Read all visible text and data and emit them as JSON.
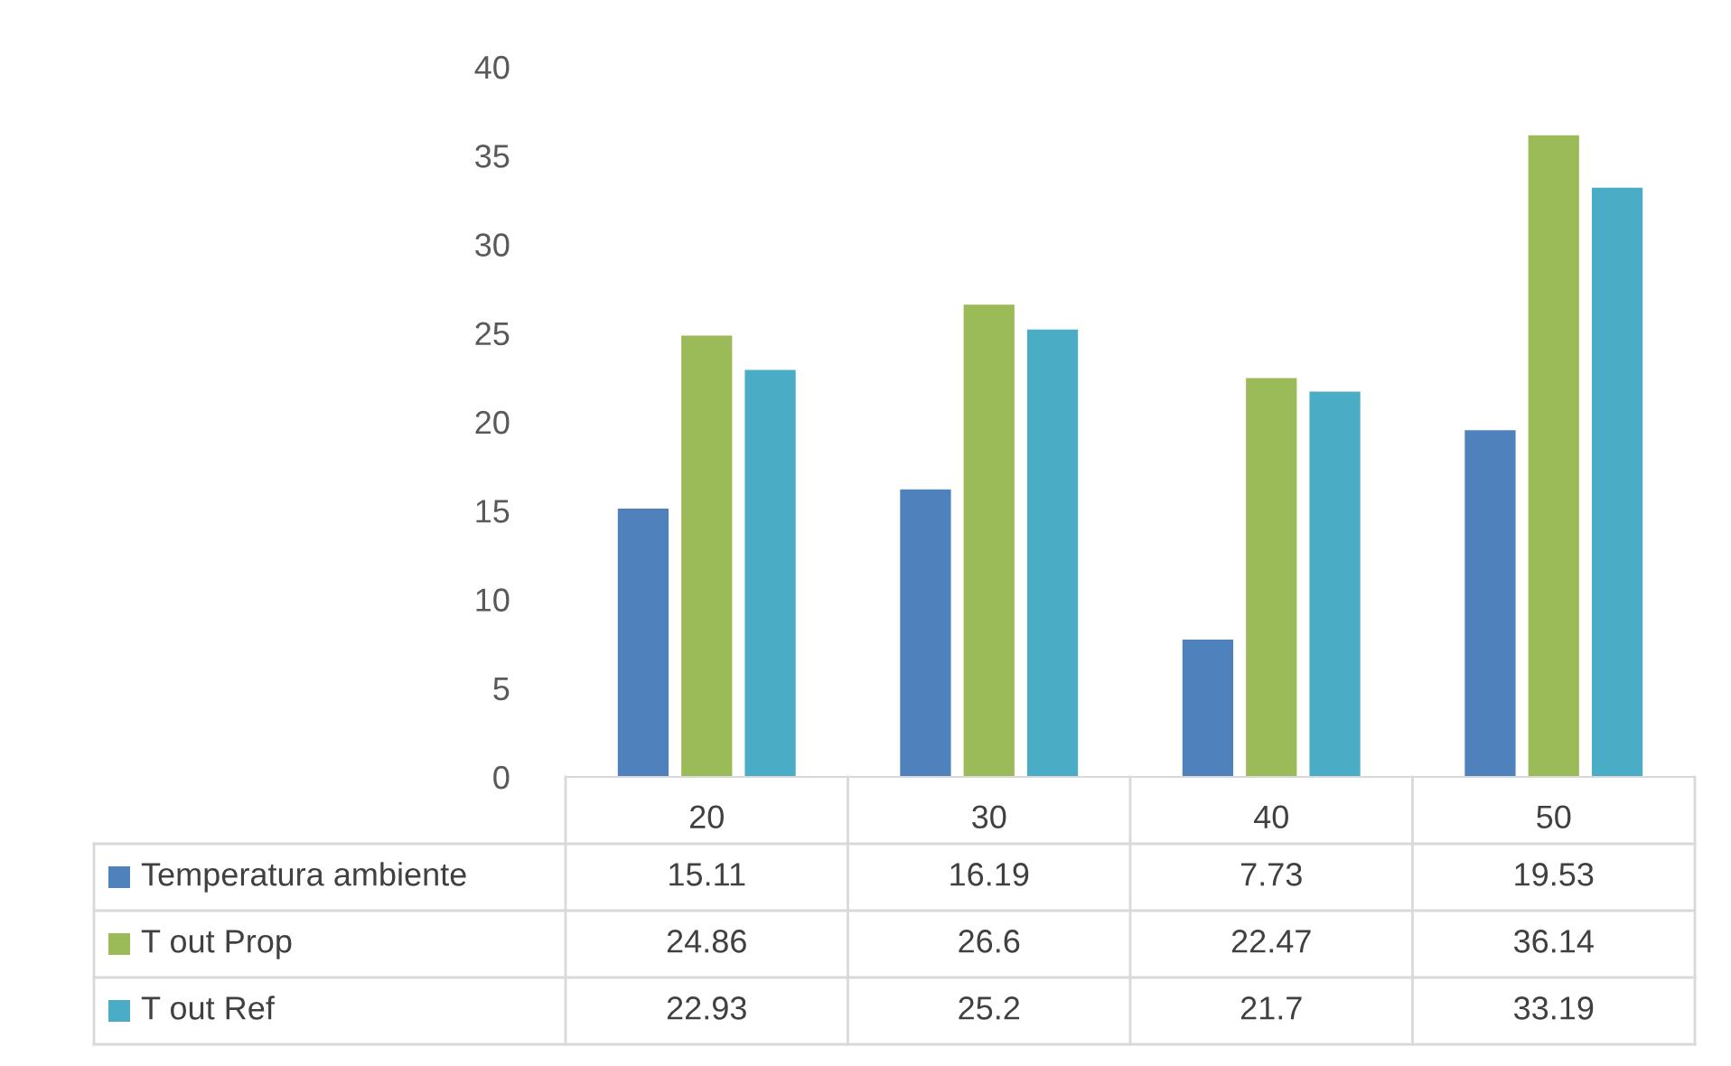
{
  "chart_data": {
    "type": "bar",
    "categories": [
      "20",
      "30",
      "40",
      "50"
    ],
    "series": [
      {
        "name": "Temperatura ambiente",
        "color": "#4f81bd",
        "values": [
          15.11,
          16.19,
          7.73,
          19.53
        ]
      },
      {
        "name": "T out Prop",
        "color": "#9bbb59",
        "values": [
          24.86,
          26.6,
          22.47,
          36.14
        ]
      },
      {
        "name": "T out Ref",
        "color": "#4bacc6",
        "values": [
          22.93,
          25.2,
          21.7,
          33.19
        ]
      }
    ],
    "ylim": [
      0,
      40
    ],
    "yticks": [
      0,
      5,
      10,
      15,
      20,
      25,
      30,
      35,
      40
    ],
    "grid": false,
    "legend": "bottom",
    "data_labels": true
  }
}
